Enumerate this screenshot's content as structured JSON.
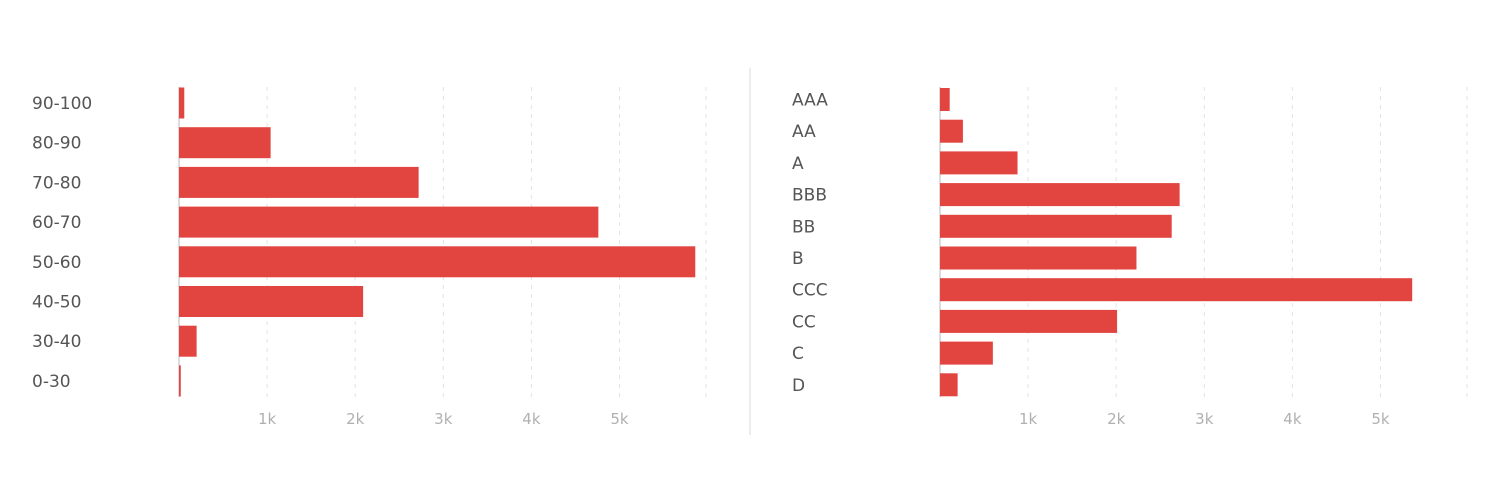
{
  "chart_data": [
    {
      "type": "bar",
      "orientation": "horizontal",
      "categories": [
        "90-100",
        "80-90",
        "70-80",
        "60-70",
        "50-60",
        "40-50",
        "30-40",
        "0-30"
      ],
      "values": [
        60,
        1040,
        2720,
        4760,
        5860,
        2090,
        200,
        20
      ],
      "xticks": [
        "1k",
        "2k",
        "3k",
        "4k",
        "5k"
      ],
      "xtick_values": [
        1000,
        2000,
        3000,
        4000,
        5000
      ],
      "xlim": [
        0,
        6000
      ],
      "grid": true,
      "color": "#e2443f"
    },
    {
      "type": "bar",
      "orientation": "horizontal",
      "categories": [
        "AAA",
        "AA",
        "A",
        "BBB",
        "BB",
        "B",
        "CCC",
        "CC",
        "C",
        "D"
      ],
      "values": [
        110,
        260,
        880,
        2720,
        2630,
        2230,
        5360,
        2010,
        600,
        200
      ],
      "xticks": [
        "1k",
        "2k",
        "3k",
        "4k",
        "5k"
      ],
      "xtick_values": [
        1000,
        2000,
        3000,
        4000,
        5000
      ],
      "xlim": [
        0,
        6000
      ],
      "grid": true,
      "color": "#e2443f"
    }
  ]
}
